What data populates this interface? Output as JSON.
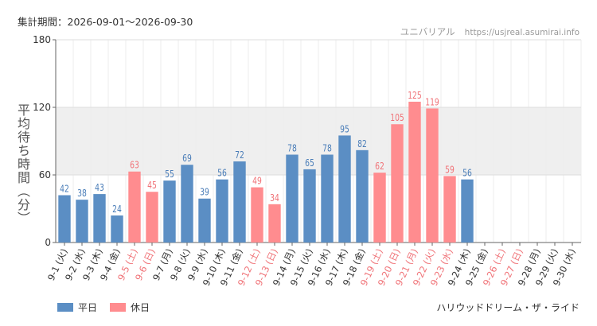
{
  "header": {
    "period": "集計期間：2026-09-01～2026-09-30",
    "brand": "ユニバリアル",
    "site": "https://usjreal.asumirai.info"
  },
  "footer": {
    "ride_name": "ハリウッドドリーム・ザ・ライド"
  },
  "colors": {
    "weekday": "#5b8ec4",
    "holiday": "#ff8c8f",
    "weekday_text": "#4a7db8",
    "holiday_text": "#f07378",
    "band": "#efefef",
    "grid": "#dddddd",
    "axis": "#666666"
  },
  "chart_data": {
    "type": "bar",
    "ylabel": "平均待ち時間（分）",
    "ylim": [
      0,
      180
    ],
    "yticks": [
      "0",
      "60",
      "120",
      "180"
    ],
    "shaded_band": [
      60,
      120
    ],
    "categories": [
      "9-1 (火)",
      "9-2 (水)",
      "9-3 (木)",
      "9-4 (金)",
      "9-5 (土)",
      "9-6 (日)",
      "9-7 (月)",
      "9-8 (火)",
      "9-9 (水)",
      "9-10 (木)",
      "9-11 (金)",
      "9-12 (土)",
      "9-13 (日)",
      "9-14 (月)",
      "9-15 (火)",
      "9-16 (水)",
      "9-17 (木)",
      "9-18 (金)",
      "9-19 (土)",
      "9-20 (日)",
      "9-21 (月)",
      "9-22 (火)",
      "9-23 (水)",
      "9-24 (木)",
      "9-25 (金)",
      "9-26 (土)",
      "9-27 (日)",
      "9-28 (月)",
      "9-29 (火)",
      "9-30 (水)"
    ],
    "values": [
      42,
      38,
      43,
      24,
      63,
      45,
      55,
      69,
      39,
      56,
      72,
      49,
      34,
      78,
      65,
      78,
      95,
      82,
      62,
      105,
      125,
      119,
      59,
      56,
      null,
      null,
      null,
      null,
      null,
      null
    ],
    "holiday": [
      false,
      false,
      false,
      false,
      true,
      true,
      false,
      false,
      false,
      false,
      false,
      true,
      true,
      false,
      false,
      false,
      false,
      false,
      true,
      true,
      true,
      true,
      true,
      false,
      false,
      true,
      true,
      false,
      false,
      false
    ],
    "legend": {
      "position": "bottom-left",
      "entries": [
        "平日",
        "休日"
      ]
    }
  }
}
